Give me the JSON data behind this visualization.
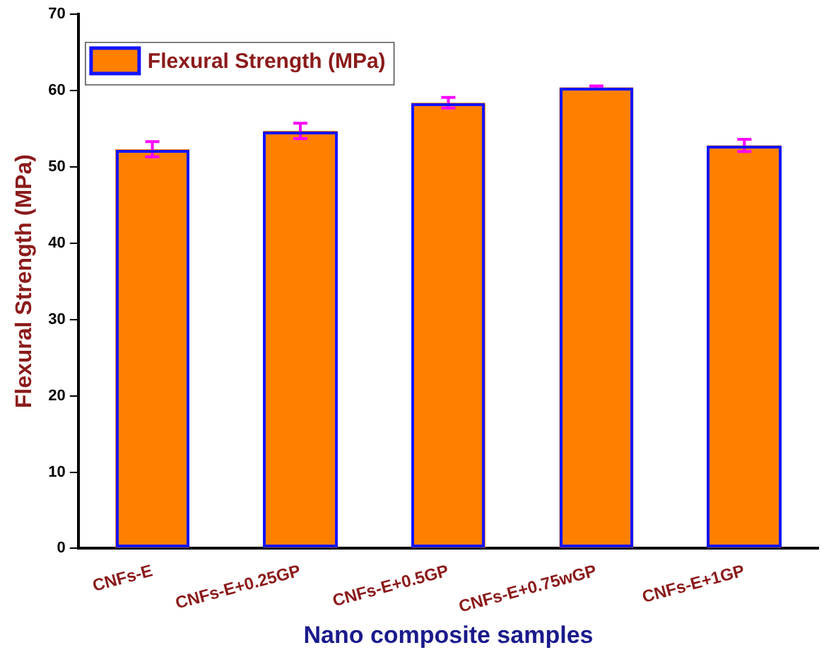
{
  "chart_data": {
    "type": "bar",
    "xlabel": "Nano composite samples",
    "ylabel": "Flexural Strength (MPa)",
    "categories": [
      "CNFs-E",
      "CNFs-E+0.25GP",
      "CNFs-E+0.5GP",
      "CNFs-E+0.75wGP",
      "CNFs-E+1GP"
    ],
    "series": [
      {
        "name": "Flexural Strength (MPa)",
        "color": "#ff7f00",
        "values": [
          52.3,
          54.7,
          58.4,
          60.4,
          52.8
        ],
        "errors": [
          1.0,
          1.0,
          0.7,
          0.2,
          0.8
        ]
      }
    ],
    "ylim": [
      0,
      70
    ],
    "yticks": [
      0,
      10,
      20,
      30,
      40,
      50,
      60,
      70
    ],
    "grid": false,
    "legend": "top left"
  }
}
